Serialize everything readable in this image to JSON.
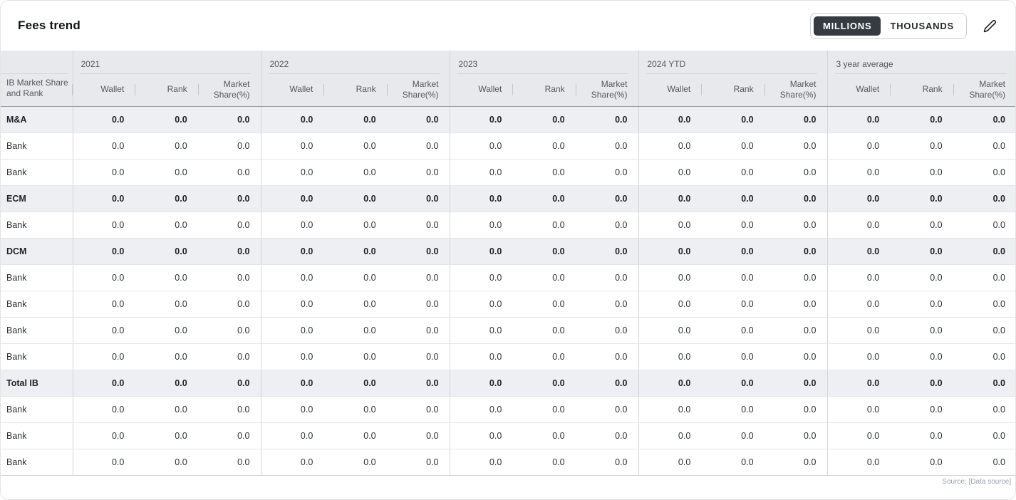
{
  "header": {
    "title": "Fees trend",
    "unit_toggle": {
      "options": [
        "MILLIONS",
        "THOUSANDS"
      ],
      "selected": "MILLIONS"
    },
    "edit_icon": "pencil-icon"
  },
  "colors": {
    "toggle_selected_bg": "#363b41",
    "header_bg": "#e7e9ec",
    "category_row_bg": "#edeff3"
  },
  "table": {
    "first_column_header": "IB Market Share and Rank",
    "group_headers": [
      "2021",
      "2022",
      "2023",
      "2024 YTD",
      "3 year average"
    ],
    "sub_columns": [
      "Wallet",
      "Rank",
      "Market Share(%)"
    ],
    "rows": [
      {
        "label": "M&A",
        "category": true,
        "values": [
          "0.0",
          "0.0",
          "0.0",
          "0.0",
          "0.0",
          "0.0",
          "0.0",
          "0.0",
          "0.0",
          "0.0",
          "0.0",
          "0.0",
          "0.0",
          "0.0",
          "0.0"
        ]
      },
      {
        "label": "Bank",
        "category": false,
        "values": [
          "0.0",
          "0.0",
          "0.0",
          "0.0",
          "0.0",
          "0.0",
          "0.0",
          "0.0",
          "0.0",
          "0.0",
          "0.0",
          "0.0",
          "0.0",
          "0.0",
          "0.0"
        ]
      },
      {
        "label": "Bank",
        "category": false,
        "values": [
          "0.0",
          "0.0",
          "0.0",
          "0.0",
          "0.0",
          "0.0",
          "0.0",
          "0.0",
          "0.0",
          "0.0",
          "0.0",
          "0.0",
          "0.0",
          "0.0",
          "0.0"
        ]
      },
      {
        "label": "ECM",
        "category": true,
        "values": [
          "0.0",
          "0.0",
          "0.0",
          "0.0",
          "0.0",
          "0.0",
          "0.0",
          "0.0",
          "0.0",
          "0.0",
          "0.0",
          "0.0",
          "0.0",
          "0.0",
          "0.0"
        ]
      },
      {
        "label": "Bank",
        "category": false,
        "values": [
          "0.0",
          "0.0",
          "0.0",
          "0.0",
          "0.0",
          "0.0",
          "0.0",
          "0.0",
          "0.0",
          "0.0",
          "0.0",
          "0.0",
          "0.0",
          "0.0",
          "0.0"
        ]
      },
      {
        "label": "DCM",
        "category": true,
        "values": [
          "0.0",
          "0.0",
          "0.0",
          "0.0",
          "0.0",
          "0.0",
          "0.0",
          "0.0",
          "0.0",
          "0.0",
          "0.0",
          "0.0",
          "0.0",
          "0.0",
          "0.0"
        ]
      },
      {
        "label": "Bank",
        "category": false,
        "values": [
          "0.0",
          "0.0",
          "0.0",
          "0.0",
          "0.0",
          "0.0",
          "0.0",
          "0.0",
          "0.0",
          "0.0",
          "0.0",
          "0.0",
          "0.0",
          "0.0",
          "0.0"
        ]
      },
      {
        "label": "Bank",
        "category": false,
        "values": [
          "0.0",
          "0.0",
          "0.0",
          "0.0",
          "0.0",
          "0.0",
          "0.0",
          "0.0",
          "0.0",
          "0.0",
          "0.0",
          "0.0",
          "0.0",
          "0.0",
          "0.0"
        ]
      },
      {
        "label": "Bank",
        "category": false,
        "values": [
          "0.0",
          "0.0",
          "0.0",
          "0.0",
          "0.0",
          "0.0",
          "0.0",
          "0.0",
          "0.0",
          "0.0",
          "0.0",
          "0.0",
          "0.0",
          "0.0",
          "0.0"
        ]
      },
      {
        "label": "Bank",
        "category": false,
        "values": [
          "0.0",
          "0.0",
          "0.0",
          "0.0",
          "0.0",
          "0.0",
          "0.0",
          "0.0",
          "0.0",
          "0.0",
          "0.0",
          "0.0",
          "0.0",
          "0.0",
          "0.0"
        ]
      },
      {
        "label": "Total IB",
        "category": true,
        "values": [
          "0.0",
          "0.0",
          "0.0",
          "0.0",
          "0.0",
          "0.0",
          "0.0",
          "0.0",
          "0.0",
          "0.0",
          "0.0",
          "0.0",
          "0.0",
          "0.0",
          "0.0"
        ]
      },
      {
        "label": "Bank",
        "category": false,
        "values": [
          "0.0",
          "0.0",
          "0.0",
          "0.0",
          "0.0",
          "0.0",
          "0.0",
          "0.0",
          "0.0",
          "0.0",
          "0.0",
          "0.0",
          "0.0",
          "0.0",
          "0.0"
        ]
      },
      {
        "label": "Bank",
        "category": false,
        "values": [
          "0.0",
          "0.0",
          "0.0",
          "0.0",
          "0.0",
          "0.0",
          "0.0",
          "0.0",
          "0.0",
          "0.0",
          "0.0",
          "0.0",
          "0.0",
          "0.0",
          "0.0"
        ]
      },
      {
        "label": "Bank",
        "category": false,
        "values": [
          "0.0",
          "0.0",
          "0.0",
          "0.0",
          "0.0",
          "0.0",
          "0.0",
          "0.0",
          "0.0",
          "0.0",
          "0.0",
          "0.0",
          "0.0",
          "0.0",
          "0.0"
        ]
      }
    ]
  },
  "footer": {
    "source": "Source: [Data source]"
  }
}
